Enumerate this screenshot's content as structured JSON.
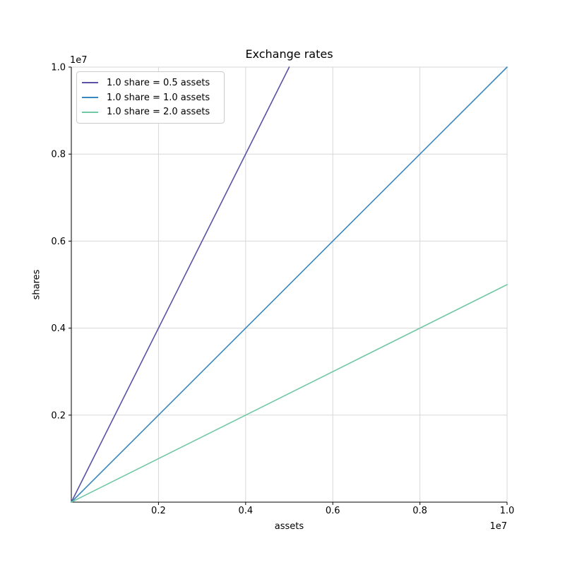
{
  "chart_data": {
    "type": "line",
    "title": "Exchange rates",
    "xlabel": "assets",
    "ylabel": "shares",
    "x_offset_text": "1e7",
    "y_offset_text": "1e7",
    "xlim": [
      0,
      10000000
    ],
    "ylim": [
      0,
      10000000
    ],
    "x_ticks": [
      2000000,
      4000000,
      6000000,
      8000000,
      10000000
    ],
    "x_tick_labels": [
      "0.2",
      "0.4",
      "0.6",
      "0.8",
      "1.0"
    ],
    "y_ticks": [
      2000000,
      4000000,
      6000000,
      8000000,
      10000000
    ],
    "y_tick_labels": [
      "0.2",
      "0.4",
      "0.6",
      "0.8",
      "1.0"
    ],
    "grid": true,
    "grid_color": "#d7d7d7",
    "axis_color": "#000000",
    "legend_position": "upper left",
    "series": [
      {
        "name": "1.0 share = 0.5 assets",
        "color": "#5952a5",
        "assets_per_share": 0.5,
        "x": [
          0,
          5000000
        ],
        "y": [
          0,
          10000000
        ]
      },
      {
        "name": "1.0 share = 1.0 assets",
        "color": "#3a87c0",
        "assets_per_share": 1.0,
        "x": [
          0,
          10000000
        ],
        "y": [
          0,
          10000000
        ]
      },
      {
        "name": "1.0 share = 2.0 assets",
        "color": "#72c8a2",
        "assets_per_share": 2.0,
        "x": [
          0,
          10000000
        ],
        "y": [
          0,
          5000000
        ]
      }
    ]
  }
}
